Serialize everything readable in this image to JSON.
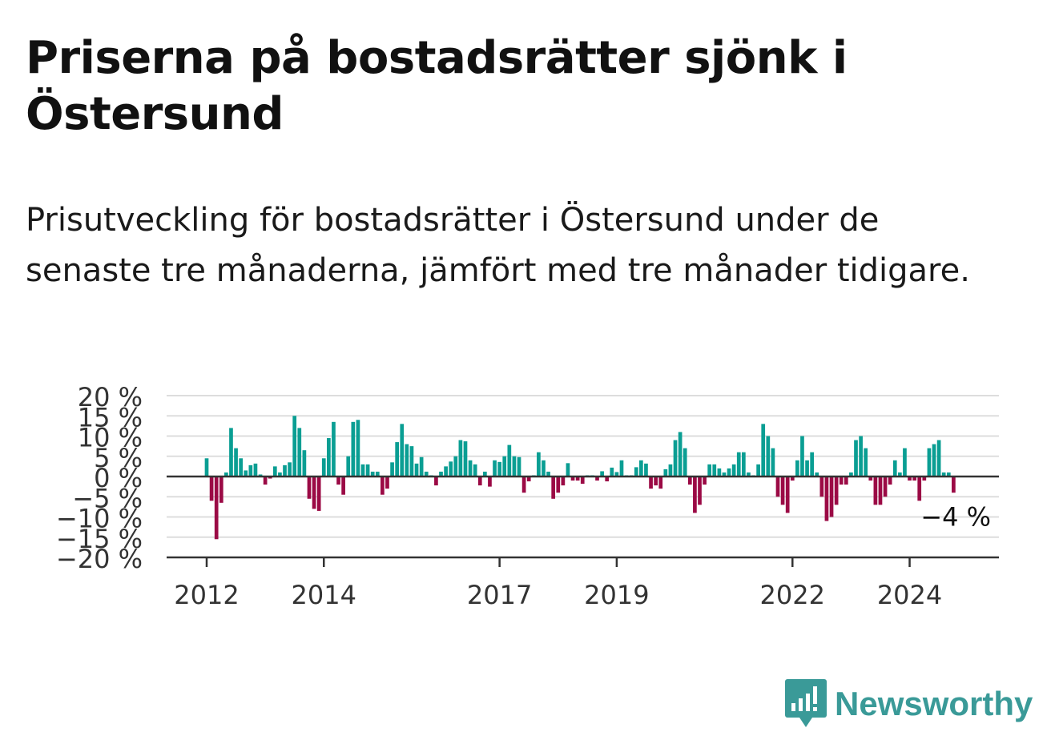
{
  "title": "Priserna på bostadsrätter sjönk i Östersund",
  "subtitle": "Prisutveckling för bostadsrätter i Östersund under de senaste tre månaderna, jämfört med tre månader tidigare.",
  "brand": {
    "name": "Newsworthy",
    "icon": "newsworthy-logo-icon"
  },
  "colors": {
    "positive": "#0a9e93",
    "negative": "#9b0a45",
    "grid": "#dddddd",
    "axis": "#333333"
  },
  "chart_data": {
    "type": "bar",
    "x_unit": "month",
    "x_start": "2012-01",
    "x_end": "2024-12",
    "ylim": [
      -20,
      20
    ],
    "yticks": [
      20,
      15,
      10,
      5,
      0,
      -5,
      -10,
      -15,
      -20
    ],
    "ytick_labels": [
      "20 %",
      "15 %",
      "10 %",
      "5 %",
      "0 %",
      "−5 %",
      "−10 %",
      "−15 %",
      "−20 %"
    ],
    "xticks": [
      "2012",
      "2014",
      "2017",
      "2019",
      "2022",
      "2024"
    ],
    "grid": true,
    "annotation": {
      "text": "−4 %",
      "value": -4,
      "position": "last-bar"
    },
    "series": [
      {
        "values": [
          4.5,
          -6,
          -15.5,
          -6.5,
          1,
          12,
          7,
          4.5,
          1.5,
          2.8,
          3.2,
          0.5,
          -2,
          -0.5,
          2.5,
          1,
          2.8,
          3.5,
          15,
          12,
          6.5,
          -5.5,
          -8,
          -8.5,
          4.5,
          9.5,
          13.5,
          -2,
          -4.5,
          5,
          13.5,
          14,
          3,
          3,
          1.2,
          1.2,
          -4.5,
          -3,
          3.5,
          8.5,
          13,
          8,
          7.5,
          3.2,
          4.8,
          1.2,
          0.3,
          -2.2,
          1.2,
          2.5,
          3.7,
          5,
          9,
          8.7,
          4,
          3,
          -2.2,
          1.2,
          -2.5,
          4,
          3.6,
          5,
          7.8,
          5,
          4.8,
          -4,
          -1.2,
          0.3,
          6,
          4,
          1.2,
          -5.5,
          -4,
          -2.2,
          3.3,
          -1,
          -1,
          -1.8,
          0.3,
          0.3,
          -1,
          1.3,
          -1.2,
          2.2,
          1.1,
          4,
          0.3,
          0.3,
          2.3,
          4,
          3.2,
          -3,
          -2.2,
          -3,
          1.8,
          3,
          9,
          11,
          7,
          -2,
          -9,
          -7,
          -2,
          3,
          3,
          2,
          1,
          2,
          3,
          6,
          6,
          1,
          0.3,
          3,
          13,
          10,
          7,
          -5,
          -7,
          -9,
          -1,
          4,
          10,
          4,
          6,
          1,
          -5,
          -11,
          -10,
          -7,
          -2,
          -2,
          1,
          9,
          10,
          7,
          -1,
          -7,
          -7,
          -5,
          -2,
          4,
          1,
          7,
          -1,
          -1,
          -6,
          -1,
          7,
          8,
          9,
          1,
          1,
          -4
        ]
      }
    ]
  }
}
